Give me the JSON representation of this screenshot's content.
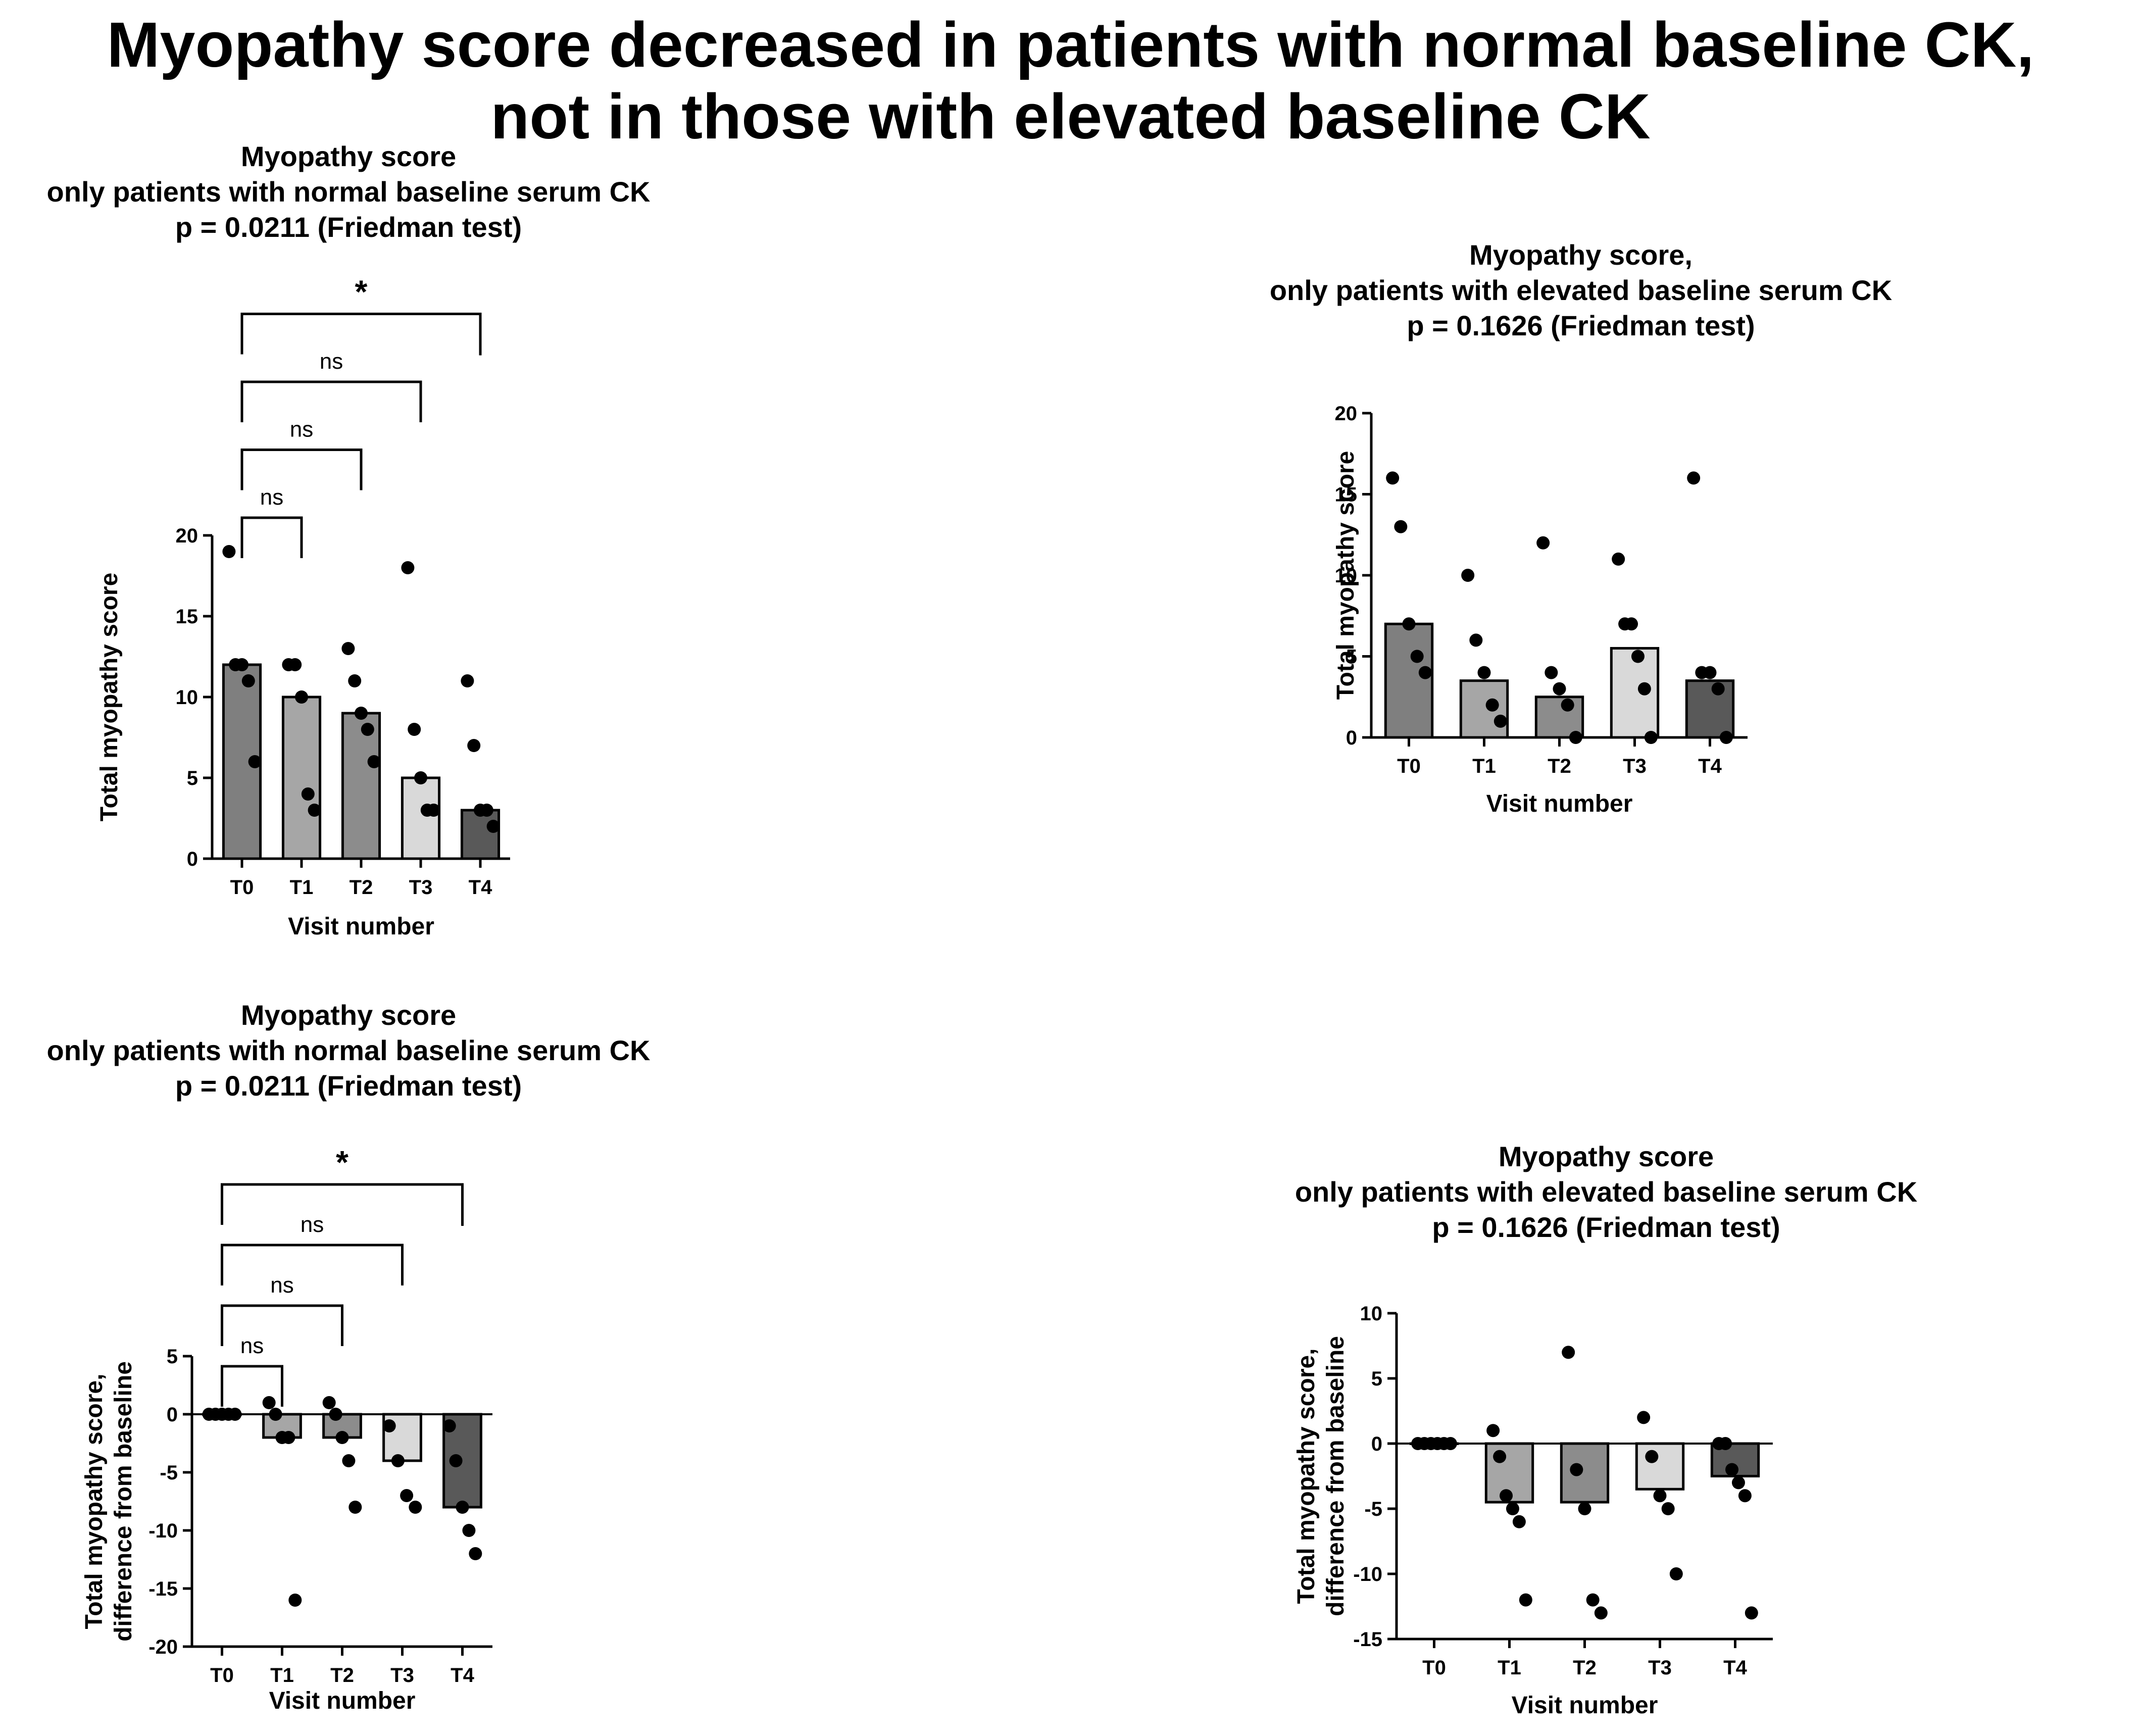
{
  "page": {
    "title_line1": "Myopathy score decreased in patients with normal baseline CK,",
    "title_line2": "not in those with elevated baseline CK"
  },
  "colors": {
    "T0": "#7f7f7f",
    "T1": "#a6a6a6",
    "T2": "#8c8c8c",
    "T3": "#d9d9d9",
    "T4": "#595959",
    "axis": "#000000",
    "point": "#000000"
  },
  "chart_data": [
    {
      "id": "normal-score",
      "type": "bar",
      "title_lines": [
        "Myopathy score",
        "only patients with normal baseline serum CK",
        "p = 0.0211 (Friedman test)"
      ],
      "xlabel": "Visit number",
      "ylabel_lines": [
        "Total myopathy score"
      ],
      "categories": [
        "T0",
        "T1",
        "T2",
        "T3",
        "T4"
      ],
      "values": [
        12,
        10,
        9,
        5,
        3
      ],
      "points": [
        [
          19,
          12,
          12,
          11,
          6
        ],
        [
          12,
          12,
          10,
          4,
          3
        ],
        [
          13,
          11,
          9,
          8,
          6
        ],
        [
          18,
          8,
          5,
          3,
          3
        ],
        [
          11,
          7,
          3,
          3,
          2
        ]
      ],
      "ylim": [
        0,
        20
      ],
      "yticks": [
        0,
        5,
        10,
        15,
        20
      ],
      "comparisons": [
        {
          "from": "T0",
          "to": "T1",
          "label": "ns"
        },
        {
          "from": "T0",
          "to": "T2",
          "label": "ns"
        },
        {
          "from": "T0",
          "to": "T3",
          "label": "ns"
        },
        {
          "from": "T0",
          "to": "T4",
          "label": "*"
        }
      ]
    },
    {
      "id": "elevated-score",
      "type": "bar",
      "title_lines": [
        "Myopathy score,",
        "only patients with elevated baseline serum CK",
        "p = 0.1626 (Friedman test)"
      ],
      "xlabel": "Visit number",
      "ylabel_lines": [
        "Total myopathy score"
      ],
      "categories": [
        "T0",
        "T1",
        "T2",
        "T3",
        "T4"
      ],
      "values": [
        7,
        3.5,
        2.5,
        5.5,
        3.5
      ],
      "points": [
        [
          16,
          13,
          7,
          5,
          4
        ],
        [
          10,
          6,
          4,
          2,
          1
        ],
        [
          12,
          4,
          3,
          2,
          0
        ],
        [
          11,
          7,
          7,
          5,
          3,
          0
        ],
        [
          16,
          4,
          4,
          3,
          0
        ]
      ],
      "ylim": [
        0,
        20
      ],
      "yticks": [
        0,
        5,
        10,
        15,
        20
      ],
      "comparisons": []
    },
    {
      "id": "normal-diff",
      "type": "bar",
      "title_lines": [
        "Myopathy score",
        "only patients with normal baseline serum CK",
        "p = 0.0211 (Friedman test)"
      ],
      "xlabel": "Visit number",
      "ylabel_lines": [
        "Total myopathy score,",
        "difference from baseline"
      ],
      "categories": [
        "T0",
        "T1",
        "T2",
        "T3",
        "T4"
      ],
      "values": [
        0,
        -2,
        -2,
        -4,
        -8
      ],
      "points": [
        [
          0,
          0,
          0,
          0,
          0
        ],
        [
          1,
          0,
          -2,
          -2,
          -16
        ],
        [
          1,
          0,
          -2,
          -4,
          -8
        ],
        [
          -1,
          -4,
          -7,
          -8
        ],
        [
          -1,
          -4,
          -8,
          -10,
          -12
        ]
      ],
      "ylim": [
        -20,
        5
      ],
      "yticks": [
        -20,
        -15,
        -10,
        -5,
        0,
        5
      ],
      "comparisons": [
        {
          "from": "T0",
          "to": "T1",
          "label": "ns"
        },
        {
          "from": "T0",
          "to": "T2",
          "label": "ns"
        },
        {
          "from": "T0",
          "to": "T3",
          "label": "ns"
        },
        {
          "from": "T0",
          "to": "T4",
          "label": "*"
        }
      ]
    },
    {
      "id": "elevated-diff",
      "type": "bar",
      "title_lines": [
        "Myopathy score",
        "only patients with elevated baseline serum CK",
        "p = 0.1626 (Friedman test)"
      ],
      "xlabel": "Visit number",
      "ylabel_lines": [
        "Total myopathy score,",
        "difference from baseline"
      ],
      "categories": [
        "T0",
        "T1",
        "T2",
        "T3",
        "T4"
      ],
      "values": [
        0,
        -4.5,
        -4.5,
        -3.5,
        -2.5
      ],
      "points": [
        [
          0,
          0,
          0,
          0,
          0,
          0
        ],
        [
          1,
          -1,
          -4,
          -5,
          -6,
          -12
        ],
        [
          7,
          -2,
          -5,
          -12,
          -13
        ],
        [
          2,
          -1,
          -4,
          -5,
          -10
        ],
        [
          0,
          0,
          -2,
          -3,
          -4,
          -13
        ]
      ],
      "ylim": [
        -15,
        10
      ],
      "yticks": [
        -15,
        -10,
        -5,
        0,
        5,
        10
      ],
      "comparisons": []
    }
  ]
}
